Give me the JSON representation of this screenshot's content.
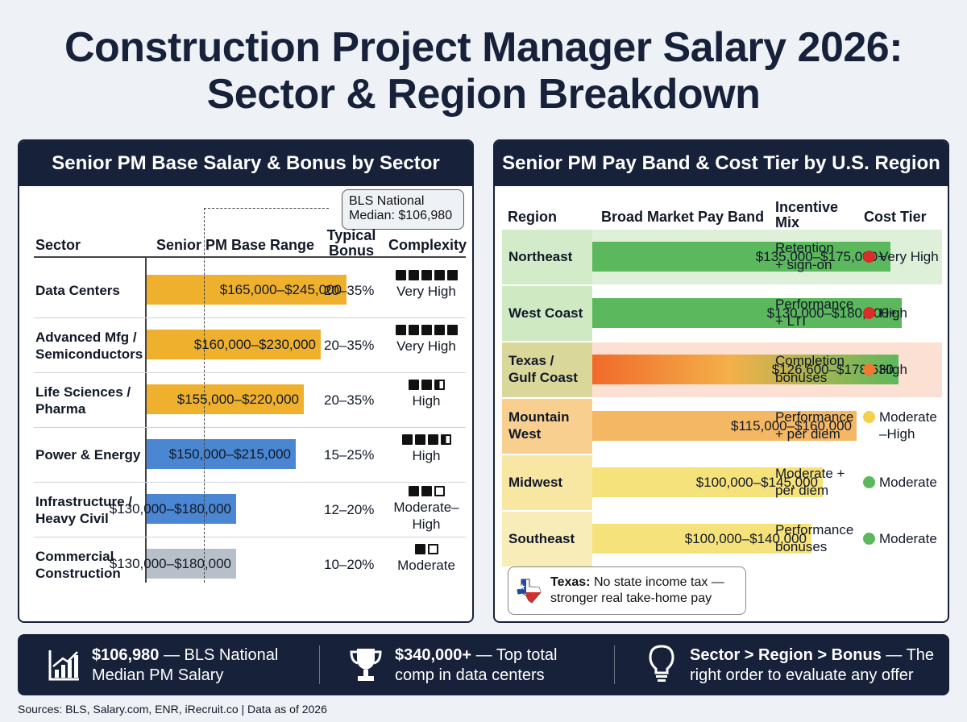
{
  "title": {
    "line1": "Construction Project Manager Salary 2026:",
    "line2": "Sector & Region Breakdown"
  },
  "colors": {
    "navy": "#17213a",
    "amber": "#eeb02d",
    "blue": "#4a86d1",
    "gray": "#b7c0c8",
    "green": "#5cb85c",
    "red": "#dc2b2b",
    "orange": "#f07a30",
    "yellow": "#f3cf4a"
  },
  "sector_panel": {
    "heading": "Senior PM Base Salary & Bonus by Sector",
    "columns": {
      "sector": "Sector",
      "range": "Senior PM Base Range",
      "bonus_l1": "Typical",
      "bonus_l2": "Bonus",
      "complexity": "Complexity"
    },
    "callout_l1": "BLS National",
    "callout_l2": "Median: $106,980",
    "rows": [
      {
        "name_l1": "Data Centers",
        "name_l2": "",
        "range": "$165,000–$245,000",
        "bonus": "20–35%",
        "complexity": "Very High",
        "complexity_l2": "",
        "squares": "fffff",
        "color": "#eeb02d"
      },
      {
        "name_l1": "Advanced Mfg /",
        "name_l2": "Semiconductors",
        "range": "$160,000–$230,000",
        "bonus": "20–35%",
        "complexity": "Very High",
        "complexity_l2": "",
        "squares": "fffff",
        "color": "#eeb02d"
      },
      {
        "name_l1": "Life Sciences /",
        "name_l2": "Pharma",
        "range": "$155,000–$220,000",
        "bonus": "20–35%",
        "complexity": "High",
        "complexity_l2": "",
        "squares": "ffh",
        "color": "#eeb02d"
      },
      {
        "name_l1": "Power & Energy",
        "name_l2": "",
        "range": "$150,000–$215,000",
        "bonus": "15–25%",
        "complexity": "High",
        "complexity_l2": "",
        "squares": "fffh",
        "color": "#4a86d1"
      },
      {
        "name_l1": "Infrastructure /",
        "name_l2": "Heavy Civil",
        "range": "$130,000–$180,000",
        "bonus": "12–20%",
        "complexity": "Moderate–",
        "complexity_l2": "High",
        "squares": "ffe",
        "color": "#4a86d1"
      },
      {
        "name_l1": "Commercial",
        "name_l2": "Construction",
        "range": "$130,000–$180,000",
        "bonus": "10–20%",
        "complexity": "Moderate",
        "complexity_l2": "",
        "squares": "fe",
        "color": "#b7c0c8"
      }
    ]
  },
  "region_panel": {
    "heading": "Senior PM Pay Band & Cost Tier by U.S. Region",
    "columns": {
      "region": "Region",
      "band": "Broad Market Pay Band",
      "incentive_l1": "Incentive",
      "incentive_l2": "Mix",
      "tier": "Cost Tier"
    },
    "rows": [
      {
        "name_l1": "Northeast",
        "name_l2": "",
        "band": "$135,000–$175,000+",
        "incentive_l1": "Retention",
        "incentive_l2": "+ sign-on",
        "tier_l1": "Very High",
        "tier_l2": "",
        "dot": "#dc2b2b",
        "bar": "#5cb85c",
        "bg": "#dff0d8",
        "label_bg": "#d3ebc8"
      },
      {
        "name_l1": "West Coast",
        "name_l2": "",
        "band": "$130,000–$180,000+",
        "incentive_l1": "Performance",
        "incentive_l2": "+ LTI",
        "tier_l1": "High",
        "tier_l2": "",
        "dot": "#dc2b2b",
        "bar": "#5cb85c",
        "bg": "#ffffff",
        "label_bg": "#cfe9c3"
      },
      {
        "name_l1": "Texas /",
        "name_l2": "Gulf Coast",
        "band": "$126,600–$178,630",
        "incentive_l1": "Completion",
        "incentive_l2": "bonuses",
        "tier_l1": "High",
        "tier_l2": "",
        "dot": "#f07a30",
        "bar": "linear-gradient(90deg,#f06a2a 0%,#f4b04a 45%,#5cb85c 100%)",
        "bg": "#fbe0d3",
        "label_bg": "#d9d79a"
      },
      {
        "name_l1": "Mountain",
        "name_l2": "West",
        "band": "$115,000–$160,000",
        "incentive_l1": "Performance",
        "incentive_l2": "+ per diem",
        "tier_l1": "Moderate",
        "tier_l2": "–High",
        "dot": "#f3cf4a",
        "bar": "#f4b864",
        "bg": "#ffffff",
        "label_bg": "#f8cf8e"
      },
      {
        "name_l1": "Midwest",
        "name_l2": "",
        "band": "$100,000–$145,000",
        "incentive_l1": "Moderate +",
        "incentive_l2": "per diem",
        "tier_l1": "Moderate",
        "tier_l2": "",
        "dot": "#5cb85c",
        "bar": "#f6e27a",
        "bg": "#ffffff",
        "label_bg": "#f8e7a2"
      },
      {
        "name_l1": "Southeast",
        "name_l2": "",
        "band": "$100,000–$140,000",
        "incentive_l1": "Performance",
        "incentive_l2": "bonuses",
        "tier_l1": "Moderate",
        "tier_l2": "",
        "dot": "#5cb85c",
        "bar": "#f6e27a",
        "bg": "#ffffff",
        "label_bg": "#f8ecb8"
      }
    ],
    "texas_note_bold": "Texas:",
    "texas_note_l1": " No state income tax —",
    "texas_note_l2": "stronger real take-home pay"
  },
  "footer": {
    "stat1_bold": "$106,980",
    "stat1_l1": " — BLS National",
    "stat1_l2": "Median PM Salary",
    "stat2_bold": "$340,000+",
    "stat2_l1": " — Top total",
    "stat2_l2": "comp in data centers",
    "stat3_bold": "Sector > Region > Bonus",
    "stat3_l1": " — The",
    "stat3_l2": "right order to evaluate any offer",
    "icons": [
      "bar-chart-icon",
      "trophy-icon",
      "lightbulb-icon"
    ]
  },
  "source": "Sources: BLS, Salary.com, ENR, iRecruit.co | Data as of 2026",
  "chart_data": [
    {
      "type": "bar",
      "title": "Senior PM Base Salary & Bonus by Sector",
      "xlabel": "Senior PM Base Range",
      "categories": [
        "Data Centers",
        "Advanced Mfg / Semiconductors",
        "Life Sciences / Pharma",
        "Power & Energy",
        "Infrastructure / Heavy Civil",
        "Commercial Construction"
      ],
      "series": [
        {
          "name": "min",
          "values": [
            165000,
            160000,
            155000,
            150000,
            130000,
            130000
          ]
        },
        {
          "name": "max",
          "values": [
            245000,
            230000,
            220000,
            215000,
            180000,
            180000
          ]
        }
      ],
      "bonus": [
        "20–35%",
        "20–35%",
        "20–35%",
        "15–25%",
        "12–20%",
        "10–20%"
      ],
      "complexity": [
        "Very High",
        "Very High",
        "High",
        "High",
        "Moderate–High",
        "Moderate"
      ],
      "complexity_score": [
        5,
        5,
        2.5,
        3.5,
        2,
        1
      ],
      "reference_line": {
        "label": "BLS National Median: $106,980",
        "value": 106980
      }
    },
    {
      "type": "bar",
      "title": "Senior PM Pay Band & Cost Tier by U.S. Region",
      "xlabel": "Broad Market Pay Band",
      "categories": [
        "Northeast",
        "West Coast",
        "Texas / Gulf Coast",
        "Mountain West",
        "Midwest",
        "Southeast"
      ],
      "series": [
        {
          "name": "min",
          "values": [
            135000,
            130000,
            126600,
            115000,
            100000,
            100000
          ]
        },
        {
          "name": "max",
          "values": [
            175000,
            180000,
            178630,
            160000,
            145000,
            140000
          ]
        }
      ],
      "cost_tier": [
        "Very High",
        "High",
        "High",
        "Moderate–High",
        "Moderate",
        "Moderate"
      ]
    }
  ]
}
